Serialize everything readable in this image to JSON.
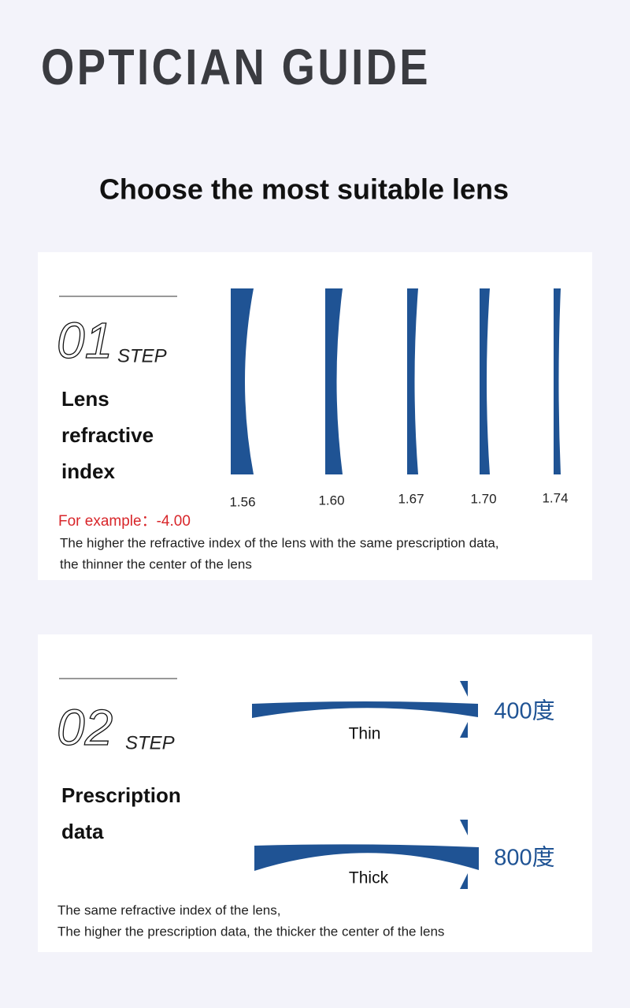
{
  "header": {
    "title": "OPTICIAN GUIDE",
    "subtitle": "Choose the most suitable lens"
  },
  "step1": {
    "number": "01",
    "step": "STEP",
    "heading": [
      "Lens",
      "refractive",
      "index"
    ],
    "lenses": [
      "1.56",
      "1.60",
      "1.67",
      "1.70",
      "1.74"
    ],
    "example": "For example：-4.00",
    "notes": [
      "The higher the refractive index of the lens with the same prescription data,",
      "the thinner the center of the lens"
    ]
  },
  "step2": {
    "number": "02",
    "step": "STEP",
    "heading": [
      "Prescription",
      "data"
    ],
    "thin": {
      "label": "Thin",
      "degree": "400度"
    },
    "thick": {
      "label": "Thick",
      "degree": "800度"
    },
    "notes": [
      "The same refractive index of the lens,",
      "The higher the prescription data, the thicker the center of the lens"
    ]
  }
}
